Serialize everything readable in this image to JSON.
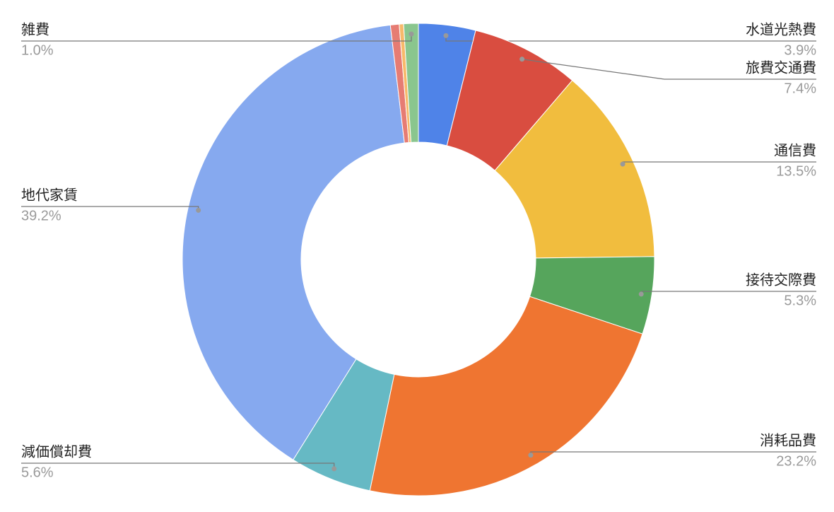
{
  "chart_data": {
    "type": "donut",
    "categories": [
      "水道光熱費",
      "旅費交通費",
      "通信費",
      "接待交際費",
      "消耗品費",
      "減価償却費",
      "地代家賃",
      null,
      null,
      "雑費"
    ],
    "values": [
      3.9,
      7.4,
      13.5,
      5.3,
      23.2,
      5.6,
      39.2,
      0.6,
      0.3,
      1.0
    ],
    "value_labels": [
      "3.9%",
      "7.4%",
      "13.5%",
      "5.3%",
      "23.2%",
      "5.6%",
      "39.2%",
      null,
      null,
      "1.0%"
    ],
    "colors": [
      "#4f83e8",
      "#d94d40",
      "#f1bd3e",
      "#56a55c",
      "#ef7531",
      "#66b9c4",
      "#86a9ef",
      "#e67c73",
      "#f7b96a",
      "#8ac68e"
    ]
  }
}
